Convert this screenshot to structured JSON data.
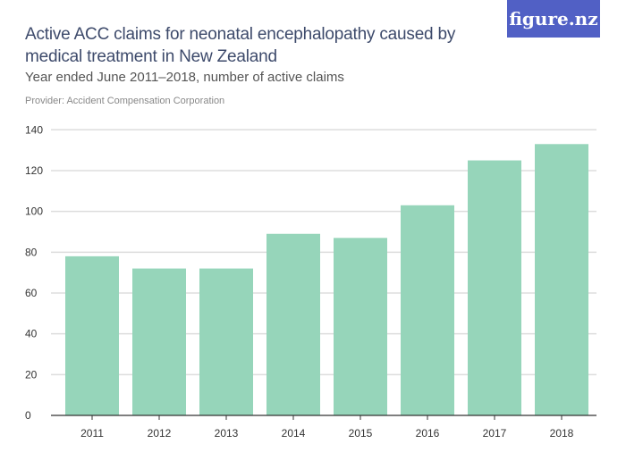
{
  "header": {
    "title": "Active ACC claims for neonatal encephalopathy caused by medical treatment in New Zealand",
    "subtitle": "Year ended June 2011–2018, number of active claims",
    "provider": "Provider: Accident Compensation Corporation",
    "logo": "figure.nz"
  },
  "colors": {
    "bar": "#96d5ba",
    "grid": "#dddddd",
    "logo_bg": "#5160c5",
    "title": "#3d4a6b"
  },
  "chart_data": {
    "type": "bar",
    "categories": [
      "2011",
      "2012",
      "2013",
      "2014",
      "2015",
      "2016",
      "2017",
      "2018"
    ],
    "values": [
      78,
      72,
      72,
      89,
      87,
      103,
      125,
      133
    ],
    "title": "Active ACC claims for neonatal encephalopathy caused by medical treatment in New Zealand",
    "subtitle": "Year ended June 2011–2018, number of active claims",
    "xlabel": "",
    "ylabel": "",
    "ylim": [
      0,
      140
    ],
    "yticks": [
      0,
      20,
      40,
      60,
      80,
      100,
      120,
      140
    ],
    "grid": true,
    "legend": "none"
  }
}
